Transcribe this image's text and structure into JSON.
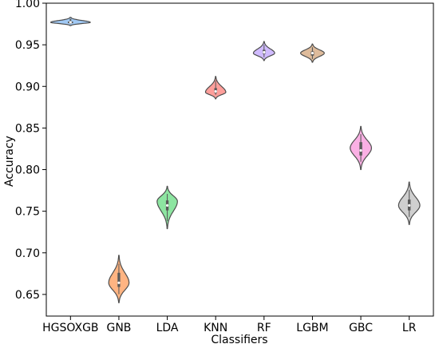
{
  "chart_data": {
    "type": "violin",
    "xlabel": "Classifiers",
    "ylabel": "Accuracy",
    "ylim": [
      0.624,
      1.0
    ],
    "yticks": [
      0.65,
      0.7,
      0.75,
      0.8,
      0.85,
      0.9,
      0.95,
      1.0
    ],
    "ytick_labels": [
      "0.65",
      "0.70",
      "0.75",
      "0.80",
      "0.85",
      "0.90",
      "0.95",
      "1.00"
    ],
    "categories": [
      "HGSOXGB",
      "GNB",
      "LDA",
      "KNN",
      "RF",
      "LGBM",
      "GBC",
      "LR"
    ],
    "series": [
      {
        "category": "HGSOXGB",
        "color": "#a1c9f4",
        "min": 0.973,
        "max": 0.983,
        "q1": 0.976,
        "median": 0.977,
        "q3": 0.978,
        "mode": 0.977,
        "max_halfwidth": 0.82
      },
      {
        "category": "GNB",
        "color": "#ffb482",
        "min": 0.64,
        "max": 0.697,
        "q1": 0.659,
        "median": 0.664,
        "q3": 0.676,
        "mode": 0.664,
        "max_halfwidth": 0.42
      },
      {
        "category": "LDA",
        "color": "#8de5a1",
        "min": 0.729,
        "max": 0.78,
        "q1": 0.751,
        "median": 0.757,
        "q3": 0.763,
        "mode": 0.762,
        "max_halfwidth": 0.42
      },
      {
        "category": "KNN",
        "color": "#ff9f9b",
        "min": 0.885,
        "max": 0.912,
        "q1": 0.892,
        "median": 0.894,
        "q3": 0.898,
        "mode": 0.893,
        "max_halfwidth": 0.42
      },
      {
        "category": "RF",
        "color": "#d0bbff",
        "min": 0.931,
        "max": 0.954,
        "q1": 0.939,
        "median": 0.941,
        "q3": 0.944,
        "mode": 0.94,
        "max_halfwidth": 0.44
      },
      {
        "category": "LGBM",
        "color": "#debb9b",
        "min": 0.929,
        "max": 0.951,
        "q1": 0.937,
        "median": 0.94,
        "q3": 0.942,
        "mode": 0.94,
        "max_halfwidth": 0.49
      },
      {
        "category": "GBC",
        "color": "#fab0e4",
        "min": 0.8,
        "max": 0.852,
        "q1": 0.817,
        "median": 0.823,
        "q3": 0.833,
        "mode": 0.826,
        "max_halfwidth": 0.44
      },
      {
        "category": "LR",
        "color": "#cfcfcf",
        "min": 0.734,
        "max": 0.785,
        "q1": 0.751,
        "median": 0.757,
        "q3": 0.764,
        "mode": 0.757,
        "max_halfwidth": 0.44
      }
    ]
  }
}
